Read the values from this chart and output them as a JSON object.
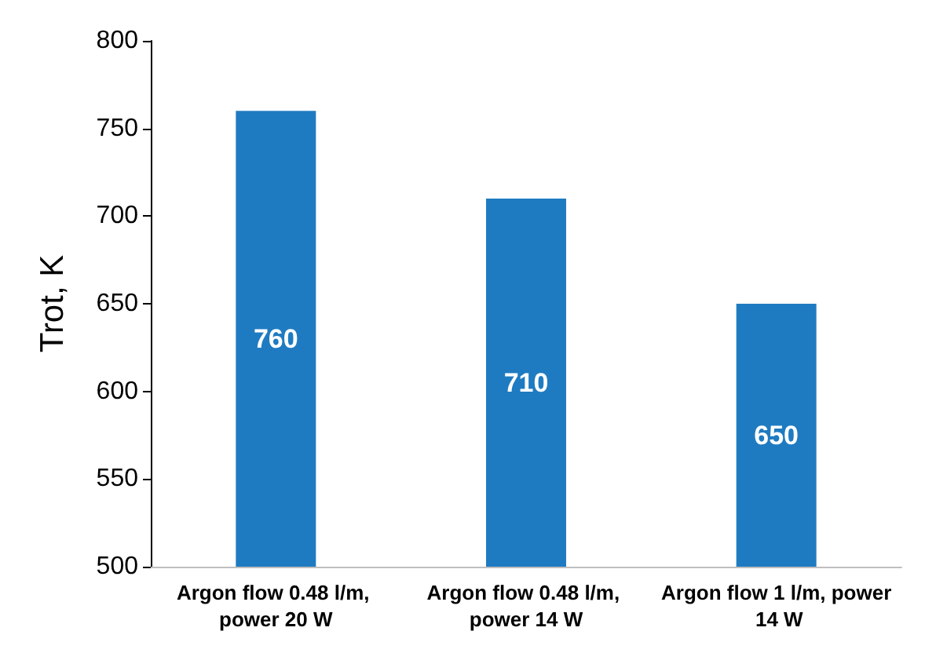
{
  "chart_data": {
    "type": "bar",
    "ylabel": "Trot, K",
    "categories": [
      "Argon flow 0.48 l/m, power 20 W",
      "Argon flow 0.48 l/m, power 14 W",
      "Argon flow 1 l/m, power 14 W"
    ],
    "values": [
      760,
      710,
      650
    ],
    "color": "#1f7bc1",
    "ylim": [
      500,
      800
    ],
    "yticks": [
      500,
      550,
      600,
      650,
      700,
      750,
      800
    ],
    "grid": false,
    "data_labels": true
  }
}
